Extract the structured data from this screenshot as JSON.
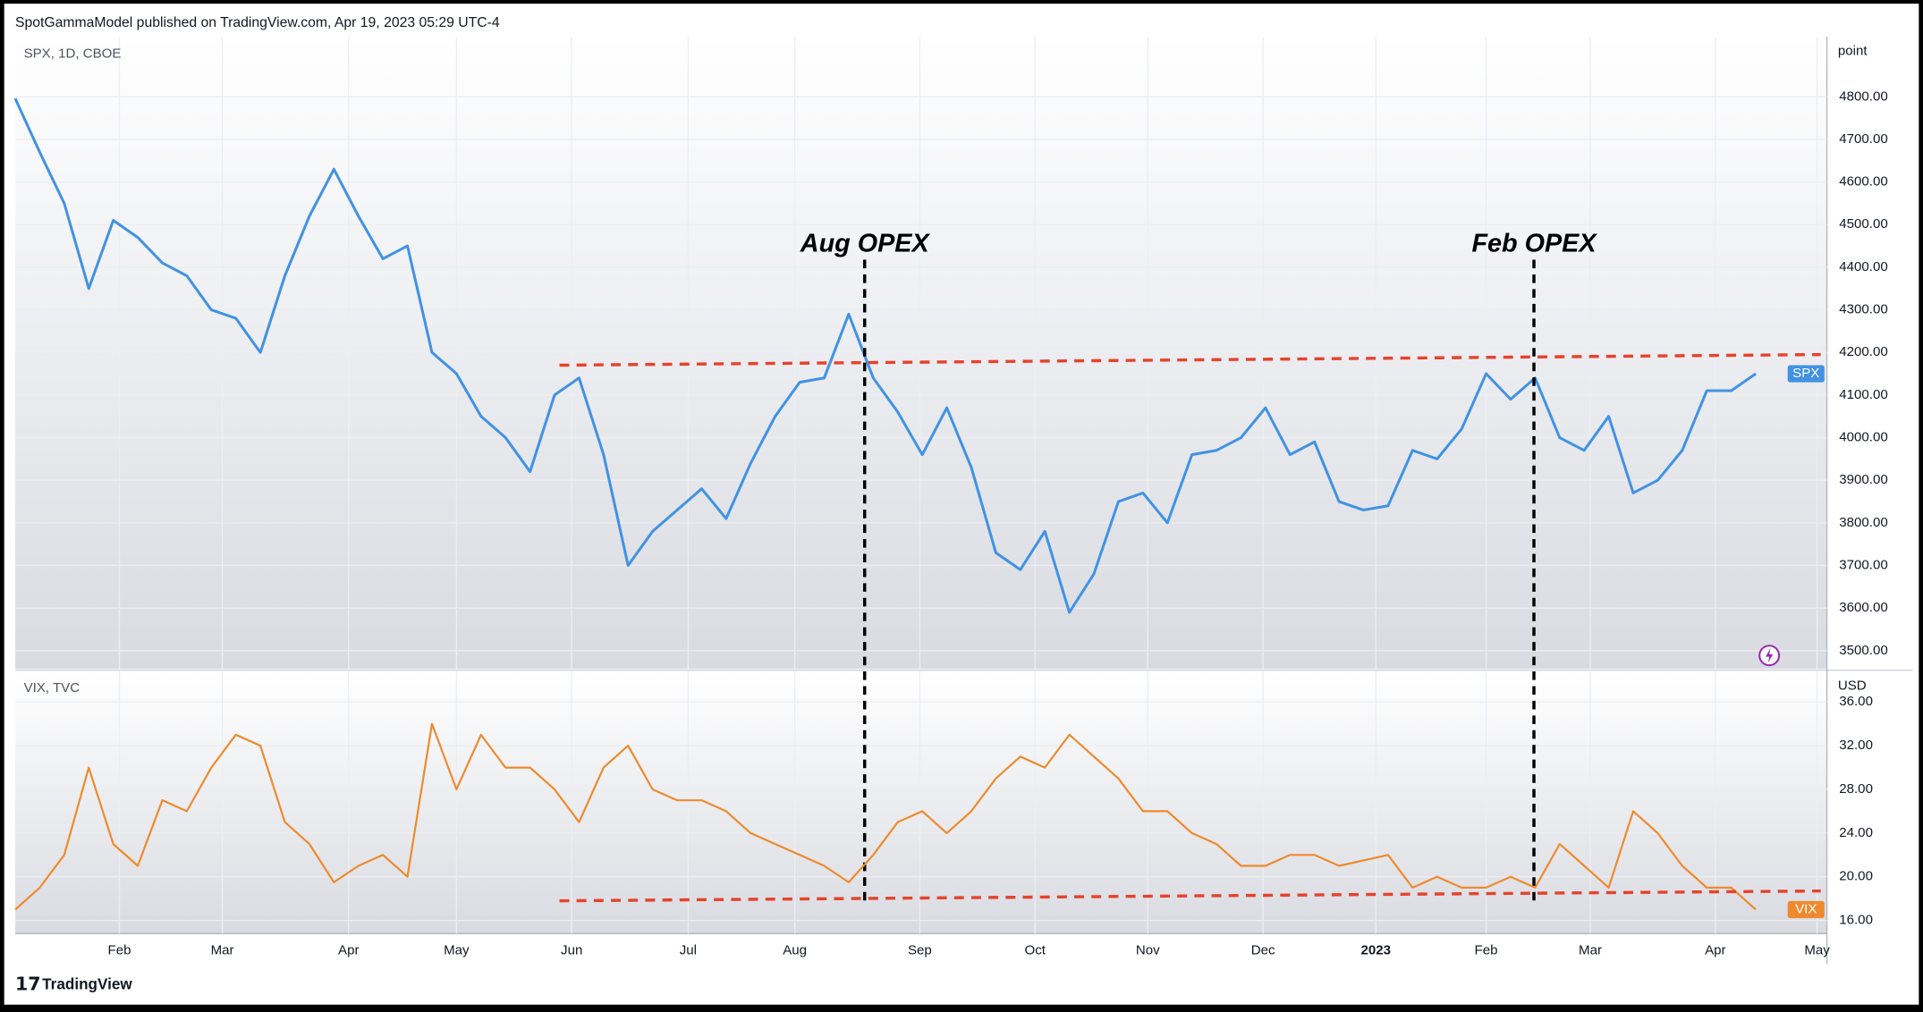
{
  "header": {
    "title": "SpotGammaModel published on TradingView.com, Apr 19, 2023 05:29 UTC-4"
  },
  "footer": {
    "brand": "TradingView"
  },
  "chart_data": [
    {
      "type": "line",
      "title": "SPX, 1D, CBOE",
      "axis_label": "point",
      "grid": true,
      "xlim": [
        0,
        73.9
      ],
      "ylim": [
        3457,
        4941
      ],
      "yticks": [
        {
          "value": 3500,
          "label": "3500.00"
        },
        {
          "value": 3600,
          "label": "3600.00"
        },
        {
          "value": 3700,
          "label": "3700.00"
        },
        {
          "value": 3800,
          "label": "3800.00"
        },
        {
          "value": 3900,
          "label": "3900.00"
        },
        {
          "value": 4000,
          "label": "4000.00"
        },
        {
          "value": 4100,
          "label": "4100.00"
        },
        {
          "value": 4200,
          "label": "4200.00"
        },
        {
          "value": 4300,
          "label": "4300.00"
        },
        {
          "value": 4400,
          "label": "4400.00"
        },
        {
          "value": 4500,
          "label": "4500.00"
        },
        {
          "value": 4600,
          "label": "4600.00"
        },
        {
          "value": 4700,
          "label": "4700.00"
        },
        {
          "value": 4800,
          "label": "4800.00"
        }
      ],
      "series": [
        {
          "name": "SPX",
          "color": "#4192e3",
          "values": [
            4796,
            4670,
            4550,
            4350,
            4510,
            4470,
            4410,
            4380,
            4300,
            4280,
            4200,
            4380,
            4520,
            4630,
            4520,
            4420,
            4450,
            4200,
            4150,
            4050,
            4000,
            3920,
            4100,
            4140,
            3960,
            3700,
            3780,
            3830,
            3880,
            3810,
            3940,
            4050,
            4130,
            4140,
            4290,
            4140,
            4060,
            3960,
            4070,
            3930,
            3730,
            3690,
            3780,
            3590,
            3680,
            3850,
            3870,
            3800,
            3960,
            3970,
            4000,
            4070,
            3960,
            3990,
            3850,
            3830,
            3840,
            3970,
            3950,
            4020,
            4150,
            4090,
            4140,
            4000,
            3970,
            4050,
            3870,
            3900,
            3970,
            4110,
            4110,
            4150
          ]
        }
      ],
      "trend_line": {
        "color": "#e5432d",
        "x": [
          22.2,
          73.65
        ],
        "values": [
          4170,
          4195
        ]
      },
      "annotations": [
        {
          "text": "Aug OPEX",
          "x": 34.65
        },
        {
          "text": "Feb OPEX",
          "x": 61.95
        }
      ]
    },
    {
      "type": "line",
      "title": "VIX, TVC",
      "axis_label": "USD",
      "grid": true,
      "xlim": [
        0,
        73.9
      ],
      "ylim": [
        14.8,
        38.8
      ],
      "yticks": [
        {
          "value": 16,
          "label": "16.00"
        },
        {
          "value": 20,
          "label": "20.00"
        },
        {
          "value": 24,
          "label": "24.00"
        },
        {
          "value": 28,
          "label": "28.00"
        },
        {
          "value": 32,
          "label": "32.00"
        },
        {
          "value": 36,
          "label": "36.00"
        }
      ],
      "xticks": [
        {
          "value": 4.25,
          "label": "Feb"
        },
        {
          "value": 8.45,
          "label": "Mar"
        },
        {
          "value": 13.6,
          "label": "Apr"
        },
        {
          "value": 18,
          "label": "May"
        },
        {
          "value": 22.7,
          "label": "Jun"
        },
        {
          "value": 27.45,
          "label": "Jul"
        },
        {
          "value": 31.8,
          "label": "Aug"
        },
        {
          "value": 36.9,
          "label": "Sep"
        },
        {
          "value": 41.6,
          "label": "Oct"
        },
        {
          "value": 46.2,
          "label": "Nov"
        },
        {
          "value": 50.9,
          "label": "Dec"
        },
        {
          "value": 55.5,
          "label": "2023"
        },
        {
          "value": 60,
          "label": "Feb"
        },
        {
          "value": 64.25,
          "label": "Mar"
        },
        {
          "value": 69.35,
          "label": "Apr"
        },
        {
          "value": 73.5,
          "label": "May"
        }
      ],
      "series": [
        {
          "name": "VIX",
          "color": "#ee8a2d",
          "values": [
            17,
            19,
            22,
            30,
            23,
            21,
            27,
            26,
            30,
            33,
            32,
            25,
            23,
            19.5,
            21,
            22,
            20,
            34,
            28,
            33,
            30,
            30,
            28,
            25,
            30,
            32,
            28,
            27,
            27,
            26,
            24,
            23,
            22,
            21,
            19.5,
            22,
            25,
            26,
            24,
            26,
            29,
            31,
            30,
            33,
            31,
            29,
            26,
            26,
            24,
            23,
            21,
            21,
            22,
            22,
            21,
            21.5,
            22,
            19,
            20,
            19,
            19,
            20,
            19,
            23,
            21,
            19,
            26,
            24,
            21,
            19,
            19,
            17
          ]
        }
      ],
      "trend_line": {
        "color": "#e5432d",
        "x": [
          22.2,
          73.65
        ],
        "values": [
          17.8,
          18.7
        ]
      }
    }
  ]
}
